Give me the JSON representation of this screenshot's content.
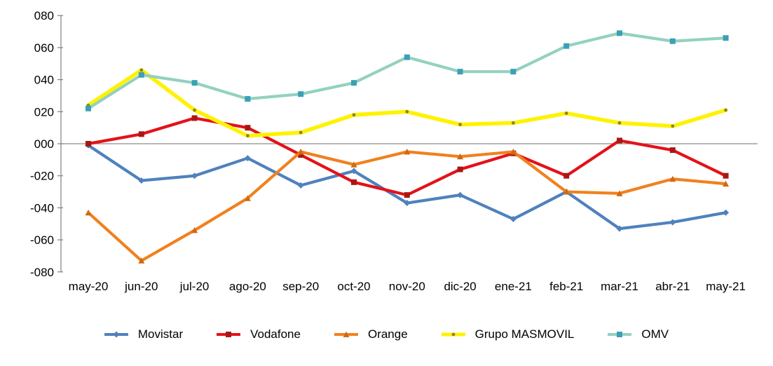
{
  "chart_data": {
    "type": "line",
    "title": "",
    "xlabel": "",
    "ylabel": "",
    "categories": [
      "may-20",
      "jun-20",
      "jul-20",
      "ago-20",
      "sep-20",
      "oct-20",
      "nov-20",
      "dic-20",
      "ene-21",
      "feb-21",
      "mar-21",
      "abr-21",
      "may-21"
    ],
    "series": [
      {
        "name": "Movistar",
        "color": "#4f81bd",
        "marker": "diamond",
        "marker_color": "#4f81bd",
        "values": [
          -1,
          -23,
          -20,
          -9,
          -26,
          -17,
          -37,
          -32,
          -47,
          -30,
          -53,
          -49,
          -43
        ]
      },
      {
        "name": "Vodafone",
        "color": "#e31219",
        "marker": "square",
        "marker_color": "#a91714",
        "values": [
          0,
          6,
          16,
          10,
          -7,
          -24,
          -32,
          -16,
          -6,
          -20,
          2,
          -4,
          -20
        ]
      },
      {
        "name": "Orange",
        "color": "#f0811f",
        "marker": "triangle",
        "marker_color": "#d06a12",
        "values": [
          -43,
          -73,
          -54,
          -34,
          -5,
          -13,
          -5,
          -8,
          -5,
          -30,
          -31,
          -22,
          -25
        ]
      },
      {
        "name": "Grupo MASMOVIL",
        "color": "#fff200",
        "marker": "dot",
        "marker_color": "#8c8420",
        "values": [
          24,
          46,
          21,
          5,
          7,
          18,
          20,
          12,
          13,
          19,
          13,
          11,
          21
        ]
      },
      {
        "name": "OMV",
        "color": "#93d1c0",
        "marker": "square",
        "marker_color": "#3ba0b5",
        "values": [
          22,
          43,
          38,
          28,
          31,
          38,
          54,
          45,
          45,
          61,
          69,
          64,
          66
        ]
      }
    ],
    "y_ticks": [
      {
        "label": "080",
        "value": 80
      },
      {
        "label": "060",
        "value": 60
      },
      {
        "label": "040",
        "value": 40
      },
      {
        "label": "020",
        "value": 20
      },
      {
        "label": "000",
        "value": 0
      },
      {
        "label": "-020",
        "value": -20
      },
      {
        "label": "-040",
        "value": -40
      },
      {
        "label": "-060",
        "value": -60
      },
      {
        "label": "-080",
        "value": -80
      }
    ],
    "ylim": [
      -80,
      80
    ],
    "grid": "horizontal zero line only",
    "legend_position": "bottom",
    "colors": {
      "axis": "#808080",
      "zero_line": "#8c8c8c",
      "tick_text": "#000000"
    }
  }
}
